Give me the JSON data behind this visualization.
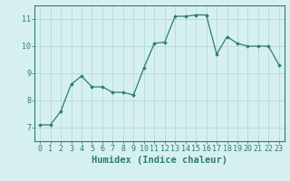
{
  "x": [
    0,
    1,
    2,
    3,
    4,
    5,
    6,
    7,
    8,
    9,
    10,
    11,
    12,
    13,
    14,
    15,
    16,
    17,
    18,
    19,
    20,
    21,
    22,
    23
  ],
  "y": [
    7.1,
    7.1,
    7.6,
    8.6,
    8.9,
    8.5,
    8.5,
    8.3,
    8.3,
    8.2,
    9.2,
    10.1,
    10.15,
    11.1,
    11.1,
    11.15,
    11.15,
    9.7,
    10.35,
    10.1,
    10.0,
    10.0,
    10.0,
    9.3
  ],
  "line_color": "#2e7d6e",
  "marker": "D",
  "marker_size": 1.8,
  "bg_color": "#d6f0f0",
  "grid_color": "#b8d8d8",
  "xlabel": "Humidex (Indice chaleur)",
  "ylim": [
    6.5,
    11.5
  ],
  "xlim": [
    -0.5,
    23.5
  ],
  "yticks": [
    7,
    8,
    9,
    10,
    11
  ],
  "xticks": [
    0,
    1,
    2,
    3,
    4,
    5,
    6,
    7,
    8,
    9,
    10,
    11,
    12,
    13,
    14,
    15,
    16,
    17,
    18,
    19,
    20,
    21,
    22,
    23
  ],
  "tick_label_fontsize": 6,
  "xlabel_fontsize": 7.5
}
